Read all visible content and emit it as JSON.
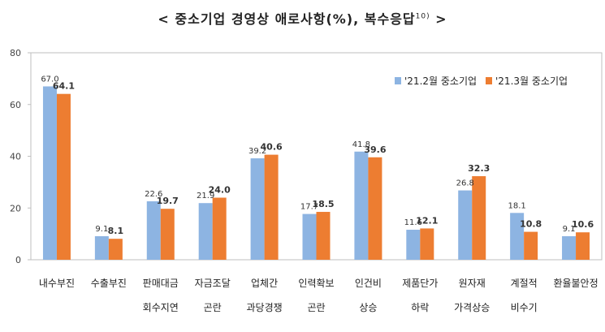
{
  "chart_data": {
    "type": "bar",
    "title_main": "< 중소기업 경영상 애로사항(%), 복수응답",
    "title_note": "10)",
    "title_end": " >",
    "ylim": [
      0,
      80
    ],
    "yticks": [
      "0",
      "20",
      "40",
      "60",
      "80"
    ],
    "categories": [
      [
        "내수부진",
        ""
      ],
      [
        "수출부진",
        ""
      ],
      [
        "판매대금",
        "회수지연"
      ],
      [
        "자금조달",
        "곤란"
      ],
      [
        "업체간",
        "과당경쟁"
      ],
      [
        "인력확보",
        "곤란"
      ],
      [
        "인건비",
        "상승"
      ],
      [
        "제품단가",
        "하락"
      ],
      [
        "원자재",
        "가격상승"
      ],
      [
        "계절적",
        "비수기"
      ],
      [
        "환율불안정",
        ""
      ]
    ],
    "series": [
      {
        "name": "'21.2월 중소기업",
        "color": "#8db4e2",
        "values": [
          67.0,
          9.1,
          22.6,
          21.9,
          39.2,
          17.7,
          41.8,
          11.6,
          26.8,
          18.1,
          9.1
        ]
      },
      {
        "name": "'21.3월 중소기업",
        "color": "#ed7d31",
        "values": [
          64.1,
          8.1,
          19.7,
          24.0,
          40.6,
          18.5,
          39.6,
          12.1,
          32.3,
          10.8,
          10.6
        ]
      }
    ],
    "data_labels": [
      [
        "67.0",
        "9.1",
        "22.6",
        "21.9",
        "39.2",
        "17.7",
        "41.8",
        "11.6",
        "26.8",
        "18.1",
        "9.1"
      ],
      [
        "64.1",
        "8.1",
        "19.7",
        "24.0",
        "40.6",
        "18.5",
        "39.6",
        "12.1",
        "32.3",
        "10.8",
        "10.6"
      ]
    ],
    "legend_position": "top-right",
    "grid": false
  }
}
